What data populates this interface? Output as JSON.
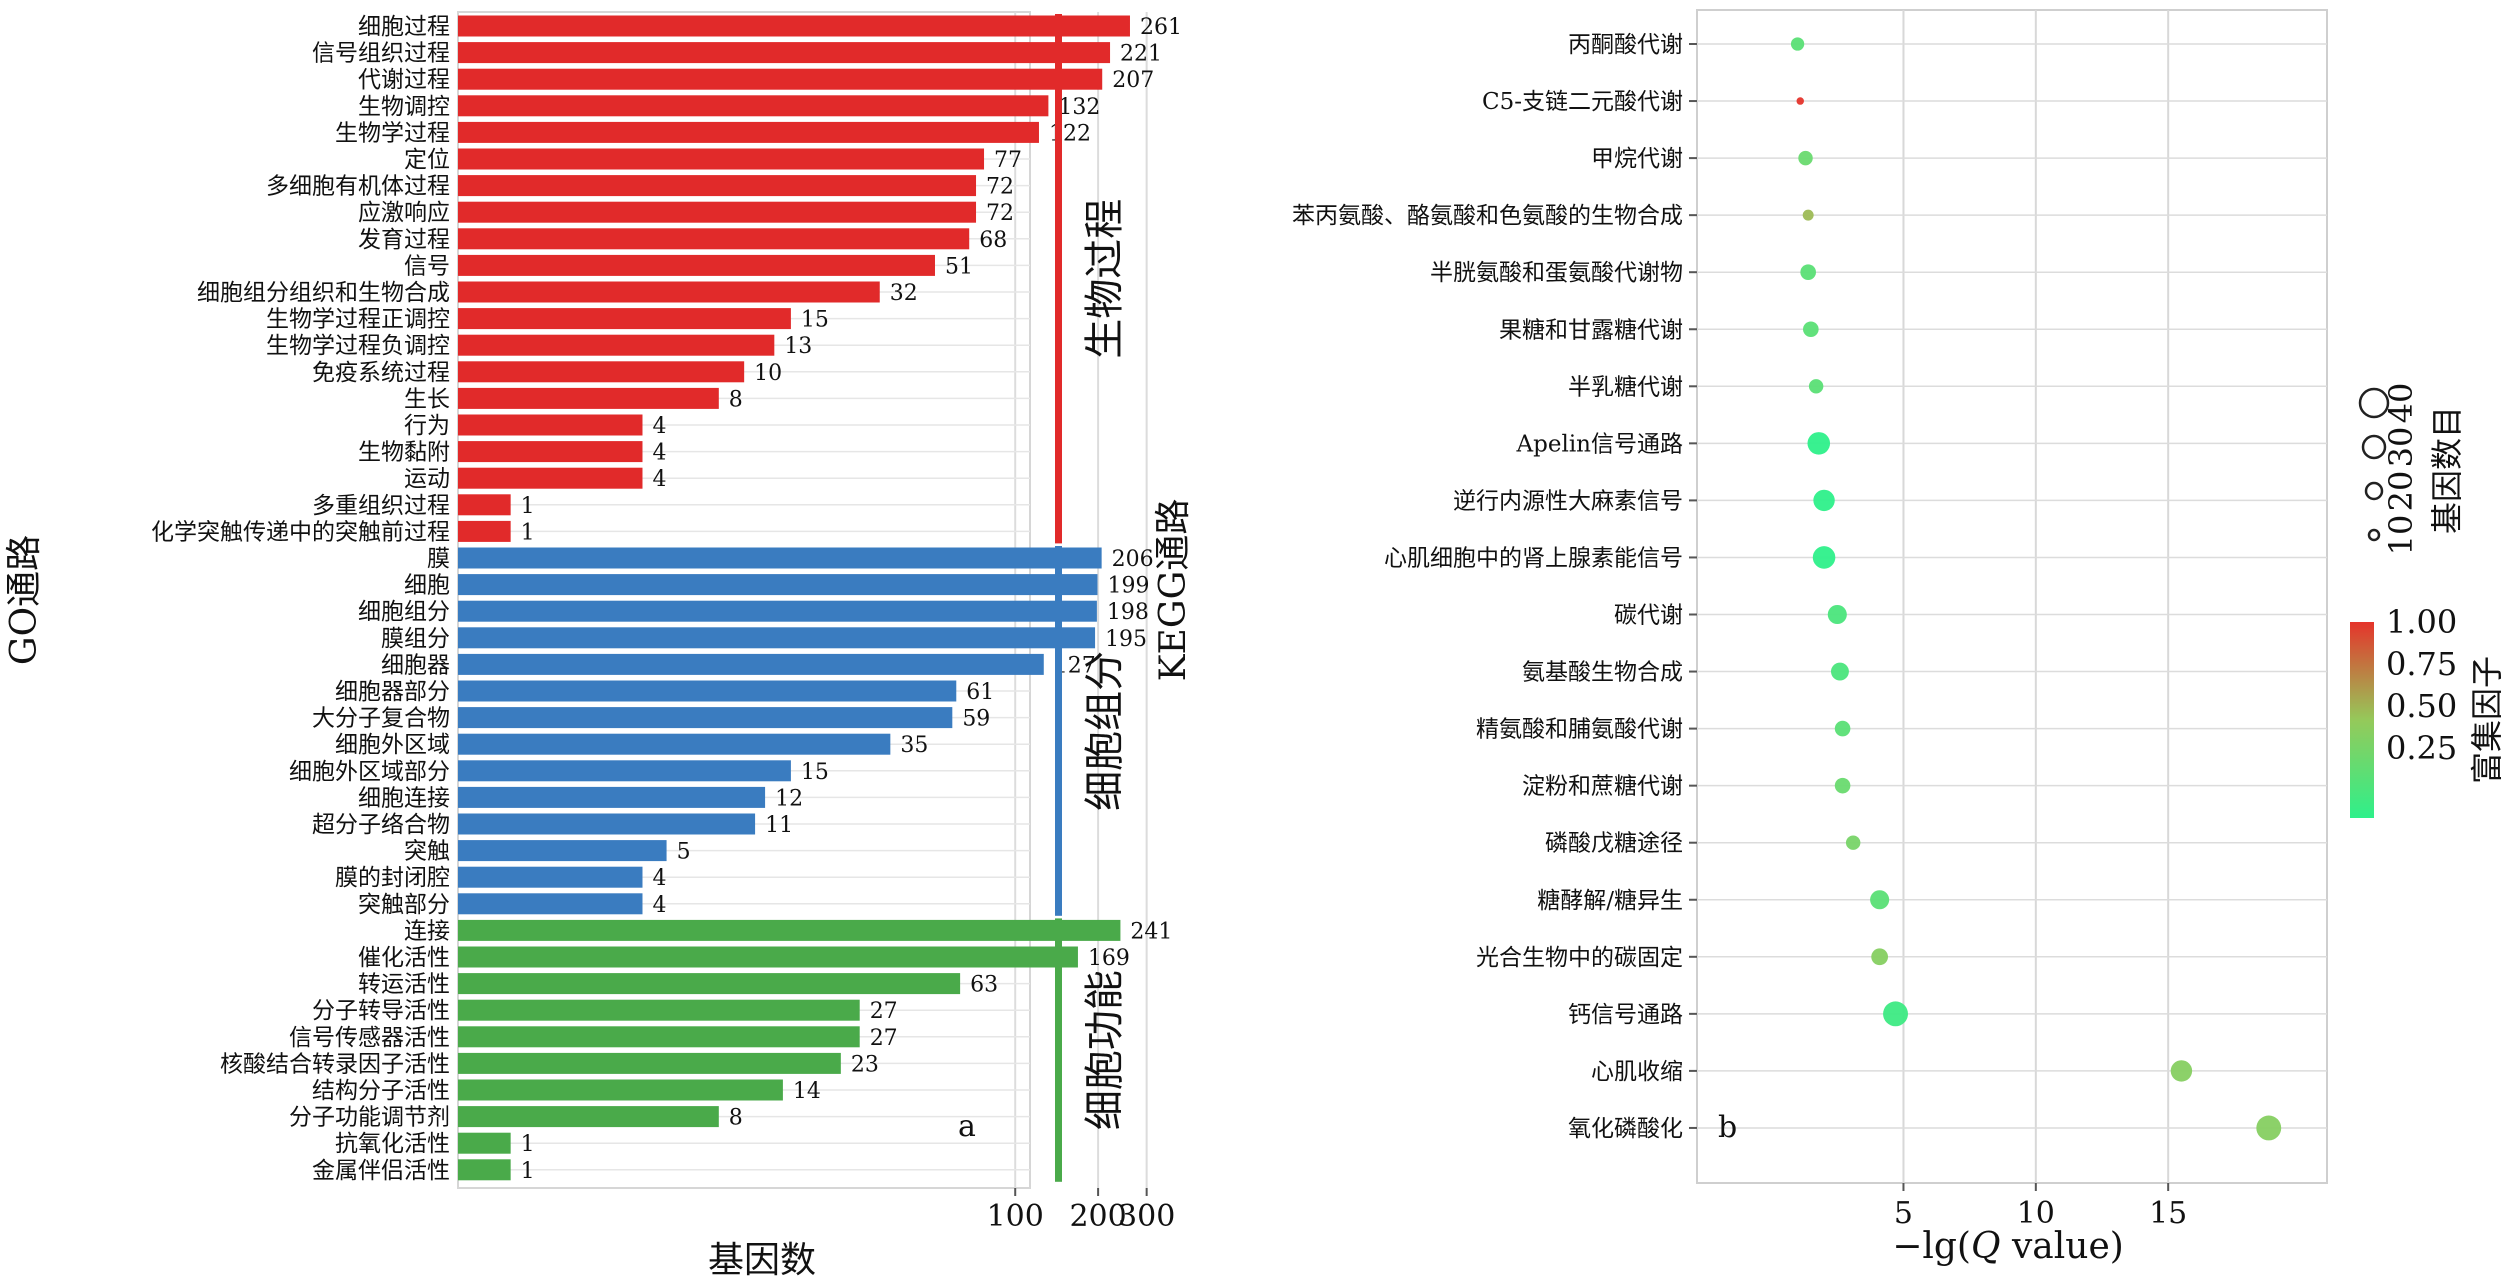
{
  "chart_data": [
    {
      "panel": "a",
      "type": "bar",
      "orientation": "horizontal",
      "xlabel": "基因数",
      "ylabel": "GO通路",
      "x_scale": "log",
      "xticks": [
        "100",
        "200",
        "300"
      ],
      "groups": [
        {
          "name": "生物过程",
          "color": "#e12a2a",
          "categories": [
            "细胞过程",
            "信号组织过程",
            "代谢过程",
            "生物调控",
            "生物学过程",
            "定位",
            "多细胞有机体过程",
            "应激响应",
            "发育过程",
            "信号",
            "细胞组分组织和生物合成",
            "生物学过程正调控",
            "生物学过程负调控",
            "免疫系统过程",
            "生长",
            "行为",
            "生物黏附",
            "运动",
            "多重组织过程",
            "化学突触传递中的突触前过程"
          ],
          "values": [
            261,
            221,
            207,
            132,
            122,
            77,
            72,
            72,
            68,
            51,
            32,
            15,
            13,
            10,
            8,
            4,
            4,
            4,
            1,
            1
          ]
        },
        {
          "name": "细胞组分",
          "color": "#3a7cc0",
          "categories": [
            "膜",
            "细胞",
            "细胞组分",
            "膜组分",
            "细胞器",
            "细胞器部分",
            "大分子复合物",
            "细胞外区域",
            "细胞外区域部分",
            "细胞连接",
            "超分子络合物",
            "突触",
            "膜的封闭腔",
            "突触部分"
          ],
          "values": [
            206,
            199,
            198,
            195,
            127,
            61,
            59,
            35,
            15,
            12,
            11,
            5,
            4,
            4
          ]
        },
        {
          "name": "细胞功能",
          "color": "#4aaa4a",
          "categories": [
            "连接",
            "催化活性",
            "转运活性",
            "分子转导活性",
            "信号传感器活性",
            "核酸结合转录因子活性",
            "结构分子活性",
            "分子功能调节剂",
            "抗氧化活性",
            "金属伴侣活性"
          ],
          "values": [
            241,
            169,
            63,
            27,
            27,
            23,
            14,
            8,
            1,
            1
          ]
        }
      ]
    },
    {
      "panel": "b",
      "type": "scatter",
      "xlabel_prefix": "−lg(",
      "xlabel_italic": "Q",
      "xlabel_suffix": " value)",
      "ylabel": "KEGG通路",
      "xlim": [
        -2.8,
        21
      ],
      "xticks": [
        5,
        10,
        15
      ],
      "grid": true,
      "categories": [
        "丙酮酸代谢",
        "C5-支链二元酸代谢",
        "甲烷代谢",
        "苯丙氨酸、酪氨酸和色氨酸的生物合成",
        "半胱氨酸和蛋氨酸代谢物",
        "果糖和甘露糖代谢",
        "半乳糖代谢",
        "Apelin信号通路",
        "逆行内源性大麻素信号",
        "心肌细胞中的肾上腺素能信号",
        "碳代谢",
        "氨基酸生物合成",
        "精氨酸和脯氨酸代谢",
        "淀粉和蔗糖代谢",
        "磷酸戊糖途径",
        "糖酵解/糖异生",
        "光合生物中的碳固定",
        "钙信号通路",
        "心肌收缩",
        "氧化磷酸化"
      ],
      "x": [
        1.0,
        1.1,
        1.3,
        1.4,
        1.4,
        1.5,
        1.7,
        1.8,
        2.0,
        2.0,
        2.5,
        2.6,
        2.7,
        2.7,
        3.1,
        4.1,
        4.1,
        4.7,
        15.5,
        18.8
      ],
      "gene_count": [
        8,
        3,
        9,
        6,
        10,
        10,
        9,
        16,
        15,
        16,
        13,
        12,
        10,
        10,
        9,
        13,
        11,
        18,
        15,
        18
      ],
      "rich_factor": [
        0.3,
        1.0,
        0.35,
        0.55,
        0.3,
        0.3,
        0.3,
        0.15,
        0.15,
        0.15,
        0.25,
        0.25,
        0.3,
        0.35,
        0.4,
        0.3,
        0.45,
        0.2,
        0.45,
        0.45
      ],
      "size_legend": {
        "title": "基因数目",
        "labels": [
          "10",
          "20",
          "30",
          "40"
        ]
      },
      "color_legend": {
        "title": "富集因子",
        "labels": [
          "1.00",
          "0.75",
          "0.50",
          "0.25"
        ],
        "colors": [
          "#e5342b",
          "#95c95a",
          "#2ef08a"
        ]
      }
    }
  ]
}
